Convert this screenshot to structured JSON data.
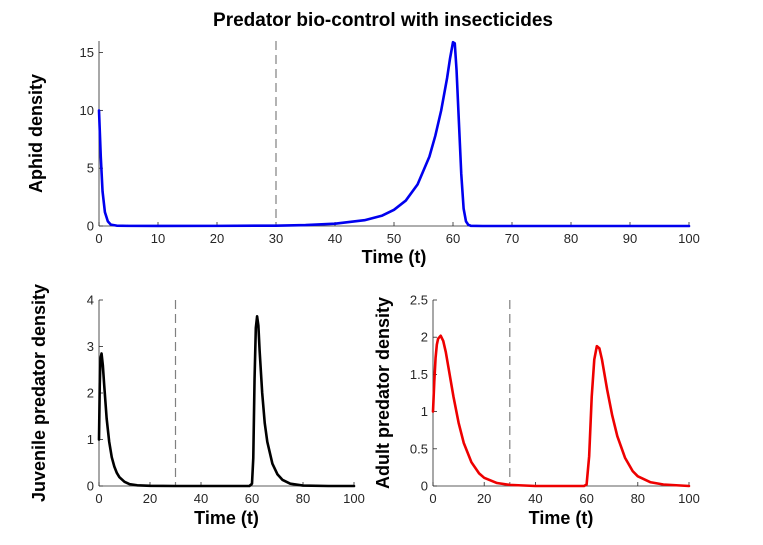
{
  "figure_title": "Predator bio-control with insecticides",
  "colors": {
    "aphid": "#0000ee",
    "juvenile": "#000000",
    "adult": "#ee0000",
    "dashed": "#808080"
  },
  "chart_data": [
    {
      "id": "aphid",
      "type": "line",
      "title": "Predator bio-control with insecticides",
      "xlabel": "Time (t)",
      "ylabel": "Aphid density",
      "xlim": [
        0,
        100
      ],
      "ylim": [
        0,
        16
      ],
      "xticks": [
        0,
        10,
        20,
        30,
        40,
        50,
        60,
        70,
        80,
        90,
        100
      ],
      "yticks": [
        0,
        5,
        10,
        15
      ],
      "vline": 30,
      "series": [
        {
          "name": "Aphid density",
          "color": "#0000ee",
          "x": [
            0,
            0.3,
            0.6,
            1,
            1.5,
            2,
            3,
            5,
            10,
            20,
            30,
            35,
            40,
            45,
            48,
            50,
            52,
            54,
            56,
            57,
            58,
            59,
            59.5,
            60,
            60.3,
            60.6,
            61,
            61.4,
            61.8,
            62.2,
            62.6,
            63,
            65,
            70,
            80,
            90,
            100
          ],
          "y": [
            10,
            6,
            3,
            1.2,
            0.4,
            0.12,
            0.03,
            0.01,
            0.005,
            0.01,
            0.03,
            0.08,
            0.2,
            0.5,
            0.9,
            1.4,
            2.2,
            3.6,
            6.0,
            7.8,
            10.0,
            12.8,
            14.5,
            15.9,
            15.8,
            13.5,
            9.0,
            4.5,
            1.5,
            0.4,
            0.1,
            0.02,
            0.0,
            0.0,
            0.0,
            0.0,
            0.0
          ]
        }
      ]
    },
    {
      "id": "juvenile",
      "type": "line",
      "xlabel": "Time (t)",
      "ylabel": "Juvenile predator density",
      "xlim": [
        0,
        100
      ],
      "ylim": [
        0,
        4
      ],
      "xticks": [
        0,
        20,
        40,
        60,
        80,
        100
      ],
      "yticks": [
        0,
        1,
        2,
        3,
        4
      ],
      "vline": 30,
      "series": [
        {
          "name": "Juvenile predator density",
          "color": "#000000",
          "x": [
            0,
            0.3,
            0.6,
            1,
            1.5,
            2,
            3,
            4,
            5,
            6,
            7,
            8,
            10,
            12,
            15,
            20,
            30,
            40,
            50,
            59,
            60,
            60.5,
            61,
            61.5,
            62,
            62.5,
            63,
            64,
            65,
            66,
            68,
            70,
            72,
            75,
            80,
            90,
            100
          ],
          "y": [
            1.0,
            2.2,
            2.75,
            2.85,
            2.6,
            2.2,
            1.45,
            0.95,
            0.62,
            0.42,
            0.28,
            0.19,
            0.09,
            0.04,
            0.015,
            0.005,
            0.0,
            0.0,
            0.0,
            0.0,
            0.05,
            0.6,
            2.3,
            3.4,
            3.65,
            3.45,
            2.9,
            2.0,
            1.35,
            0.95,
            0.48,
            0.25,
            0.13,
            0.05,
            0.01,
            0.0,
            0.0
          ]
        }
      ]
    },
    {
      "id": "adult",
      "type": "line",
      "xlabel": "Time (t)",
      "ylabel": "Adult predator density",
      "xlim": [
        0,
        100
      ],
      "ylim": [
        0,
        2.5
      ],
      "xticks": [
        0,
        20,
        40,
        60,
        80,
        100
      ],
      "yticks": [
        0,
        0.5,
        1,
        1.5,
        2,
        2.5
      ],
      "vline": 30,
      "series": [
        {
          "name": "Adult predator density",
          "color": "#ee0000",
          "x": [
            0,
            0.5,
            1,
            1.5,
            2,
            3,
            4,
            5,
            6,
            8,
            10,
            12,
            15,
            18,
            20,
            25,
            30,
            40,
            50,
            59,
            60,
            61,
            62,
            63,
            64,
            65,
            66,
            68,
            70,
            72,
            75,
            78,
            80,
            85,
            90,
            100
          ],
          "y": [
            1.0,
            1.4,
            1.72,
            1.9,
            1.98,
            2.02,
            1.95,
            1.8,
            1.6,
            1.2,
            0.85,
            0.58,
            0.32,
            0.17,
            0.11,
            0.04,
            0.015,
            0.0,
            0.0,
            0.0,
            0.02,
            0.4,
            1.2,
            1.7,
            1.88,
            1.85,
            1.7,
            1.3,
            0.95,
            0.67,
            0.38,
            0.2,
            0.13,
            0.05,
            0.02,
            0.0
          ]
        }
      ]
    }
  ]
}
